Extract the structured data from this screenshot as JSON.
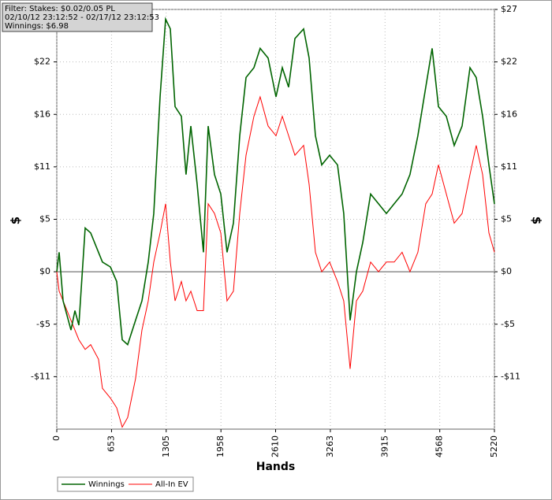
{
  "chart_data": {
    "type": "line",
    "info": [
      "Filter: Stakes: $0.02/0.05 PL",
      "02/10/12 23:12:52 - 02/17/12 23:12:53",
      "Winnings: $6.98"
    ],
    "xlabel": "Hands",
    "ylabel": "$",
    "x": [
      0,
      28,
      75,
      122,
      169,
      216,
      263,
      339,
      404,
      498,
      545,
      640,
      715,
      781,
      846,
      940,
      1016,
      1091,
      1157,
      1232,
      1298,
      1354,
      1411,
      1486,
      1542,
      1599,
      1674,
      1749,
      1806,
      1881,
      1956,
      2031,
      2107,
      2182,
      2257,
      2351,
      2426,
      2521,
      2615,
      2690,
      2765,
      2840,
      2944,
      3010,
      3085,
      3160,
      3254,
      3348,
      3423,
      3499,
      3574,
      3649,
      3743,
      3837,
      3931,
      4025,
      4119,
      4213,
      4307,
      4401,
      4477,
      4552,
      4646,
      4740,
      4834,
      4928,
      5003,
      5079,
      5154,
      5220
    ],
    "series": [
      {
        "name": "Winnings",
        "color": "#006400",
        "values": [
          0,
          2,
          -3,
          -4.5,
          -6,
          -4,
          -5.5,
          4.5,
          4,
          2,
          1,
          0.5,
          -1,
          -7,
          -7.5,
          -5,
          -3,
          1,
          6,
          18,
          26,
          25,
          17,
          16,
          10,
          15,
          9,
          2,
          15,
          10,
          8,
          2,
          5,
          14,
          20,
          21,
          23,
          22,
          18,
          21,
          19,
          24,
          25,
          22,
          14,
          11,
          12,
          11,
          6,
          -5,
          0,
          3,
          8,
          7,
          6,
          7,
          8,
          10,
          14,
          19,
          23,
          17,
          16,
          13,
          15,
          21,
          20,
          16,
          11,
          6.98
        ]
      },
      {
        "name": "All-In EV",
        "color": "#ff0000",
        "values": [
          0,
          -2,
          -3,
          -4,
          -5,
          -6,
          -7,
          -8,
          -7.5,
          -9,
          -12,
          -13,
          -14,
          -16,
          -15,
          -11,
          -6,
          -3,
          1,
          4,
          7,
          1,
          -3,
          -1,
          -3,
          -2,
          -4,
          -4,
          7,
          6,
          4,
          -3,
          -2,
          6,
          12,
          16,
          18,
          15,
          14,
          16,
          14,
          12,
          13,
          9,
          2,
          0,
          1,
          -1,
          -3,
          -10,
          -3,
          -2,
          1,
          0,
          1,
          1,
          2,
          0,
          2,
          7,
          8,
          11,
          8,
          5,
          6,
          10,
          13,
          10,
          4,
          2
        ]
      }
    ],
    "xlim": [
      0,
      5220
    ],
    "xticks": [
      0,
      653,
      1305,
      1958,
      2610,
      3263,
      3915,
      4568,
      5220
    ],
    "ylim": [
      -16.2,
      27
    ],
    "yticks": [
      {
        "value": 27,
        "label": "$27"
      },
      {
        "value": 21.6,
        "label": "$22"
      },
      {
        "value": 16.2,
        "label": "$16"
      },
      {
        "value": 10.8,
        "label": "$11"
      },
      {
        "value": 5.4,
        "label": "$5"
      },
      {
        "value": 0,
        "label": "$0"
      },
      {
        "value": -5.4,
        "label": "-$5"
      },
      {
        "value": -10.8,
        "label": "-$11"
      }
    ],
    "grid": true
  }
}
